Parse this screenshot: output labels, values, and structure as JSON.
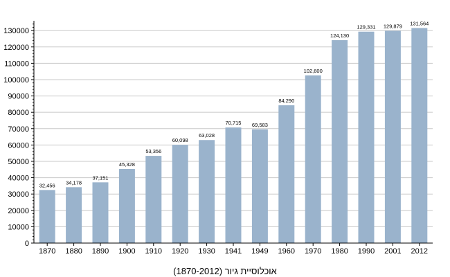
{
  "chart_data": {
    "type": "bar",
    "categories": [
      "1870",
      "1880",
      "1890",
      "1900",
      "1910",
      "1920",
      "1930",
      "1941",
      "1949",
      "1960",
      "1970",
      "1980",
      "1990",
      "2001",
      "2012"
    ],
    "values": [
      32456,
      34178,
      37151,
      45328,
      53356,
      60098,
      63028,
      70715,
      69583,
      84290,
      102600,
      124130,
      129331,
      129879,
      131564
    ],
    "data_labels": [
      "32,456",
      "34,178",
      "37,151",
      "45,328",
      "53,356",
      "60,098",
      "63,028",
      "70,715",
      "69,583",
      "84,290",
      "102,600",
      "124,130",
      "129,331",
      "129,879",
      "131,564"
    ],
    "y_ticks": [
      0,
      10000,
      20000,
      30000,
      40000,
      50000,
      60000,
      70000,
      80000,
      90000,
      100000,
      110000,
      120000,
      130000
    ],
    "ylim": [
      0,
      136000
    ],
    "grid": "horizontal",
    "bar_color": "#9ab3cc",
    "caption": "אוכלוסיית גיור (1870-2012)"
  }
}
